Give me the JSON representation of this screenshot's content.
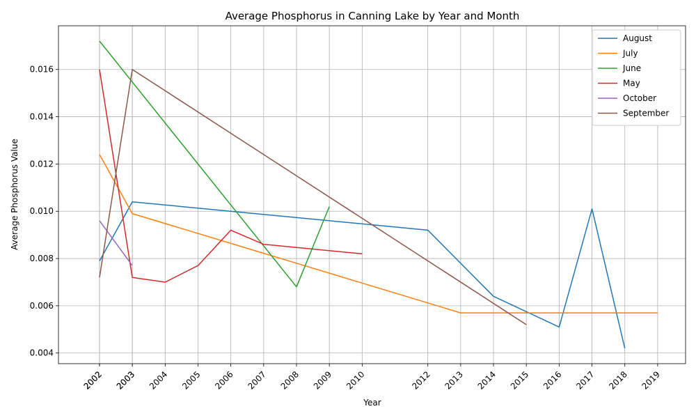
{
  "chart_data": {
    "type": "line",
    "title": "Average Phosphorus in Canning Lake by Year and Month",
    "xlabel": "Year",
    "ylabel": "Average Phosphorus Value",
    "xlim": [
      2000.75,
      2019.85
    ],
    "ylim": [
      0.00355,
      0.01785
    ],
    "x_ticks": [
      "2002",
      "2002",
      "2003",
      "2003",
      "2004",
      "2005",
      "2006",
      "2007",
      "2008",
      "2009",
      "2010",
      "2012",
      "2013",
      "2014",
      "2015",
      "2016",
      "2017",
      "2018",
      "2019"
    ],
    "x_tick_values": [
      2002,
      2002,
      2003,
      2003,
      2004,
      2005,
      2006,
      2007,
      2008,
      2009,
      2010,
      2012,
      2013,
      2014,
      2015,
      2016,
      2017,
      2018,
      2019
    ],
    "y_ticks": [
      "0.004",
      "0.006",
      "0.008",
      "0.010",
      "0.012",
      "0.014",
      "0.016"
    ],
    "y_tick_values": [
      0.004,
      0.006,
      0.008,
      0.01,
      0.012,
      0.014,
      0.016
    ],
    "grid": true,
    "legend_position": "top-right",
    "series": [
      {
        "name": "August",
        "color": "#1f77b4",
        "x": [
          2002,
          2003,
          2012,
          2014,
          2016,
          2017,
          2018
        ],
        "y": [
          0.0079,
          0.0104,
          0.0092,
          0.0064,
          0.0051,
          0.0101,
          0.0042
        ]
      },
      {
        "name": "July",
        "color": "#ff7f0e",
        "x": [
          2002,
          2003,
          2013,
          2019
        ],
        "y": [
          0.0124,
          0.0099,
          0.0057,
          0.0057
        ]
      },
      {
        "name": "June",
        "color": "#2ca02c",
        "x": [
          2002,
          2008,
          2009
        ],
        "y": [
          0.0172,
          0.0068,
          0.0102
        ]
      },
      {
        "name": "May",
        "color": "#d62728",
        "x": [
          2002,
          2003,
          2004,
          2005,
          2006,
          2007,
          2010
        ],
        "y": [
          0.016,
          0.0072,
          0.007,
          0.0077,
          0.0092,
          0.0086,
          0.0082
        ]
      },
      {
        "name": "October",
        "color": "#9467bd",
        "x": [
          2002,
          2003
        ],
        "y": [
          0.0096,
          0.0077
        ]
      },
      {
        "name": "September",
        "color": "#8c564b",
        "x": [
          2002,
          2003,
          2015
        ],
        "y": [
          0.0072,
          0.016,
          0.0052
        ]
      }
    ]
  }
}
